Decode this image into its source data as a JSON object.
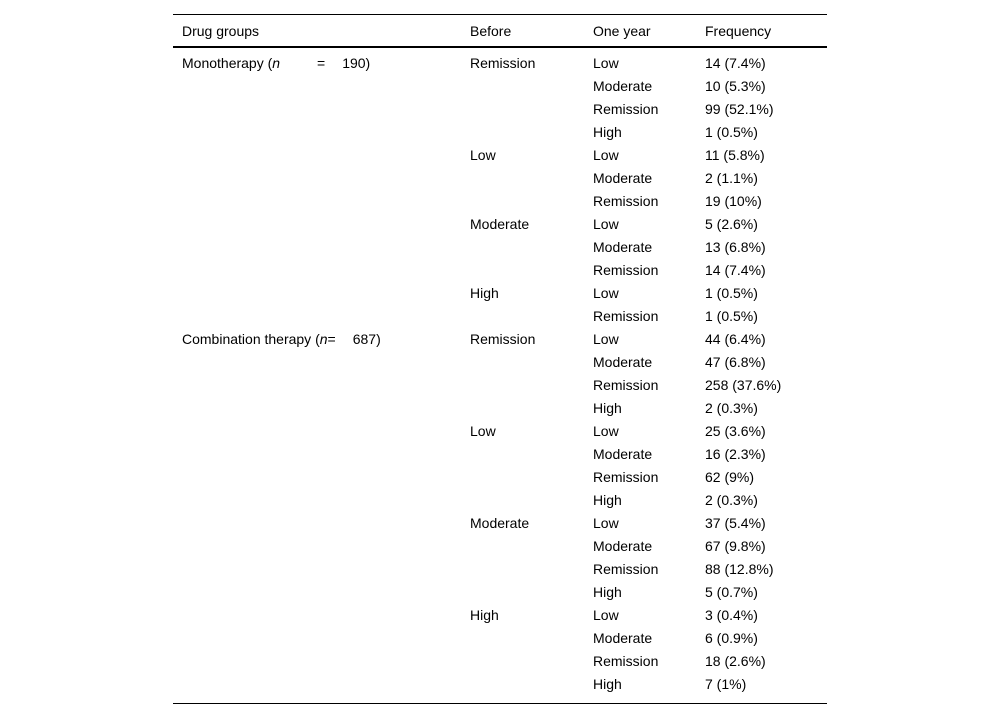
{
  "table": {
    "headers": [
      "Drug groups",
      "Before",
      "One year",
      "Frequency"
    ],
    "groups": [
      {
        "prefix": "Monotherapy (",
        "n": "n",
        "eq": "=",
        "value": "190)",
        "subgroups": [
          {
            "before": "Remission",
            "rows": [
              {
                "one_year": "Low",
                "frequency": "14 (7.4%)"
              },
              {
                "one_year": "Moderate",
                "frequency": "10 (5.3%)"
              },
              {
                "one_year": "Remission",
                "frequency": "99 (52.1%)"
              },
              {
                "one_year": "High",
                "frequency": "1 (0.5%)"
              }
            ]
          },
          {
            "before": "Low",
            "rows": [
              {
                "one_year": "Low",
                "frequency": "11 (5.8%)"
              },
              {
                "one_year": "Moderate",
                "frequency": "2 (1.1%)"
              },
              {
                "one_year": "Remission",
                "frequency": "19 (10%)"
              }
            ]
          },
          {
            "before": "Moderate",
            "rows": [
              {
                "one_year": "Low",
                "frequency": "5 (2.6%)"
              },
              {
                "one_year": "Moderate",
                "frequency": "13 (6.8%)"
              },
              {
                "one_year": "Remission",
                "frequency": "14 (7.4%)"
              }
            ]
          },
          {
            "before": "High",
            "rows": [
              {
                "one_year": "Low",
                "frequency": "1 (0.5%)"
              },
              {
                "one_year": "Remission",
                "frequency": "1 (0.5%)"
              }
            ]
          }
        ]
      },
      {
        "prefix": "Combination therapy (",
        "n": "n",
        "eq": "=",
        "value": "687)",
        "subgroups": [
          {
            "before": "Remission",
            "rows": [
              {
                "one_year": "Low",
                "frequency": "44 (6.4%)"
              },
              {
                "one_year": "Moderate",
                "frequency": "47 (6.8%)"
              },
              {
                "one_year": "Remission",
                "frequency": "258 (37.6%)"
              },
              {
                "one_year": "High",
                "frequency": "2 (0.3%)"
              }
            ]
          },
          {
            "before": "Low",
            "rows": [
              {
                "one_year": "Low",
                "frequency": "25 (3.6%)"
              },
              {
                "one_year": "Moderate",
                "frequency": "16 (2.3%)"
              },
              {
                "one_year": "Remission",
                "frequency": "62 (9%)"
              },
              {
                "one_year": "High",
                "frequency": "2 (0.3%)"
              }
            ]
          },
          {
            "before": "Moderate",
            "rows": [
              {
                "one_year": "Low",
                "frequency": "37 (5.4%)"
              },
              {
                "one_year": "Moderate",
                "frequency": "67 (9.8%)"
              },
              {
                "one_year": "Remission",
                "frequency": "88 (12.8%)"
              },
              {
                "one_year": "High",
                "frequency": "5 (0.7%)"
              }
            ]
          },
          {
            "before": "High",
            "rows": [
              {
                "one_year": "Low",
                "frequency": "3 (0.4%)"
              },
              {
                "one_year": "Moderate",
                "frequency": "6 (0.9%)"
              },
              {
                "one_year": "Remission",
                "frequency": "18 (2.6%)"
              },
              {
                "one_year": "High",
                "frequency": "7 (1%)"
              }
            ]
          }
        ]
      }
    ]
  }
}
